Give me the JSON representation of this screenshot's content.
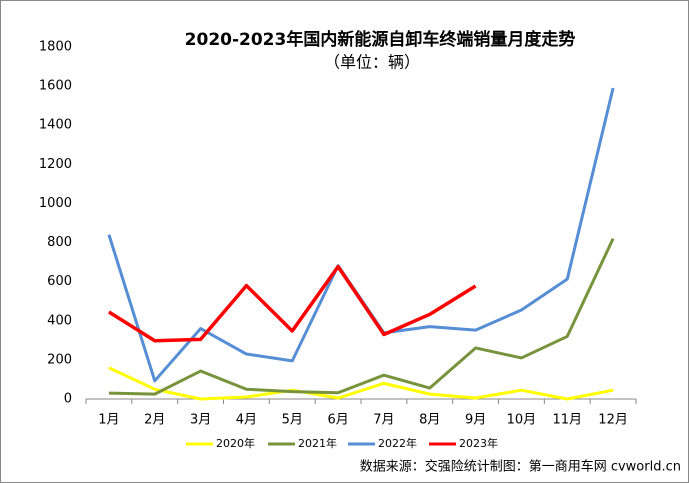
{
  "chart_data": {
    "type": "line",
    "title": "2020-2023年国内新能源自卸车终端销量月度走势",
    "subtitle": "（单位：辆）",
    "source": "数据来源：交强险统计制图：第一商用车网 cvworld.cn",
    "categories": [
      "1月",
      "2月",
      "3月",
      "4月",
      "5月",
      "6月",
      "7月",
      "8月",
      "9月",
      "10月",
      "11月",
      "12月"
    ],
    "series": [
      {
        "name": "2020年",
        "color": "#ffff00",
        "values": [
          160,
          50,
          0,
          10,
          45,
          5,
          80,
          25,
          5,
          45,
          0,
          45
        ]
      },
      {
        "name": "2021年",
        "color": "#77933c",
        "values": [
          30,
          25,
          143,
          50,
          38,
          32,
          122,
          56,
          261,
          210,
          320,
          820
        ]
      },
      {
        "name": "2022年",
        "color": "#558ed5",
        "values": [
          840,
          93,
          360,
          230,
          195,
          682,
          338,
          370,
          352,
          455,
          613,
          1590
        ]
      },
      {
        "name": "2023年",
        "color": "#ff0000",
        "values": [
          445,
          298,
          305,
          580,
          348,
          677,
          330,
          433,
          578,
          null,
          null,
          null
        ]
      }
    ],
    "ylim": [
      0,
      1800
    ],
    "yticks": [
      0,
      200,
      400,
      600,
      800,
      1000,
      1200,
      1400,
      1600,
      1800
    ],
    "legend": "bottom"
  }
}
